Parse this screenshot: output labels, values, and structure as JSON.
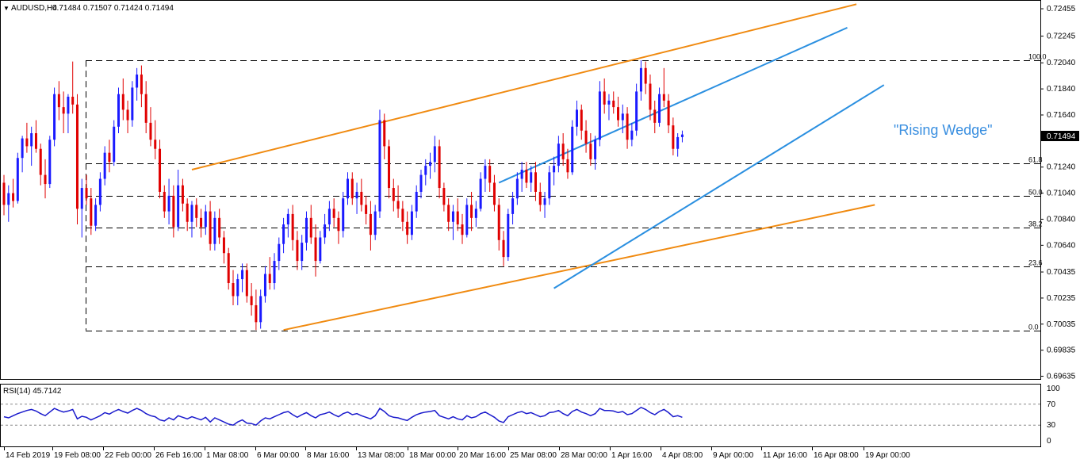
{
  "header": {
    "arrow": "▼",
    "symbol": "AUDUSD,H4",
    "ohlc": "0.71484 0.71507 0.71424 0.71494"
  },
  "annotation": "\"Rising Wedge\"",
  "price_badge": "0.71494",
  "rsi_header": "RSI(14) 45.7142",
  "colors": {
    "bull": "#1a1aff",
    "bear": "#e00000",
    "wedge": "#2a8fe0",
    "channel": "#f08a10",
    "rsi": "#1a1acc",
    "annotation": "#3a8fe0",
    "grid": "#000000"
  },
  "chart_data": {
    "type": "candlestick",
    "price_axis": {
      "min": 0.6962,
      "max": 0.7251,
      "ticks": [
        "0.72455",
        "0.72245",
        "0.72040",
        "0.71840",
        "0.71640",
        "0.71494",
        "0.71240",
        "0.71040",
        "0.70840",
        "0.70640",
        "0.70435",
        "0.70235",
        "0.70035",
        "0.69835",
        "0.69635"
      ],
      "tick_values": [
        0.72455,
        0.72245,
        0.7204,
        0.7184,
        0.7164,
        0.7124,
        0.7104,
        0.7084,
        0.7064,
        0.70435,
        0.70235,
        0.70035,
        0.69835,
        0.69635
      ]
    },
    "time_labels": [
      "14 Feb 2019",
      "19 Feb 08:00",
      "22 Feb 00:00",
      "26 Feb 16:00",
      "1 Mar 08:00",
      "6 Mar 00:00",
      "8 Mar 16:00",
      "13 Mar 08:00",
      "18 Mar 00:00",
      "20 Mar 16:00",
      "25 Mar 08:00",
      "28 Mar 00:00",
      "1 Apr 16:00",
      "4 Apr 08:00",
      "9 Apr 00:00",
      "11 Apr 16:00",
      "16 Apr 08:00",
      "19 Apr 00:00"
    ],
    "fibonacci": [
      {
        "label": "100.0",
        "value": 0.72059
      },
      {
        "label": "61.8",
        "value": 0.71266
      },
      {
        "label": "50.0",
        "value": 0.71021
      },
      {
        "label": "38.2",
        "value": 0.70777
      },
      {
        "label": "23.6",
        "value": 0.70475
      },
      {
        "label": "0.0",
        "value": 0.69987
      }
    ],
    "candles": [
      [
        0.7112,
        0.7118,
        0.7087,
        0.7095
      ],
      [
        0.7095,
        0.711,
        0.7082,
        0.7104
      ],
      [
        0.7104,
        0.7115,
        0.7093,
        0.7098
      ],
      [
        0.7098,
        0.7135,
        0.7096,
        0.7131
      ],
      [
        0.7131,
        0.7148,
        0.712,
        0.7146
      ],
      [
        0.7146,
        0.7158,
        0.7135,
        0.714
      ],
      [
        0.714,
        0.7155,
        0.7125,
        0.715
      ],
      [
        0.715,
        0.716,
        0.7135,
        0.7138
      ],
      [
        0.7138,
        0.7142,
        0.711,
        0.7118
      ],
      [
        0.7118,
        0.713,
        0.71,
        0.7111
      ],
      [
        0.7111,
        0.7148,
        0.7108,
        0.7145
      ],
      [
        0.7145,
        0.7185,
        0.714,
        0.718
      ],
      [
        0.718,
        0.719,
        0.716,
        0.717
      ],
      [
        0.717,
        0.7182,
        0.715,
        0.7165
      ],
      [
        0.7165,
        0.718,
        0.715,
        0.7178
      ],
      [
        0.7178,
        0.7205,
        0.7165,
        0.7172
      ],
      [
        0.7172,
        0.718,
        0.708,
        0.7092
      ],
      [
        0.7092,
        0.7115,
        0.707,
        0.7108
      ],
      [
        0.7108,
        0.7118,
        0.7095,
        0.71
      ],
      [
        0.71,
        0.7108,
        0.7072,
        0.7079
      ],
      [
        0.7079,
        0.71,
        0.7075,
        0.7095
      ],
      [
        0.7095,
        0.712,
        0.709,
        0.7115
      ],
      [
        0.7115,
        0.714,
        0.711,
        0.7135
      ],
      [
        0.7135,
        0.7145,
        0.712,
        0.7128
      ],
      [
        0.7128,
        0.716,
        0.7125,
        0.7155
      ],
      [
        0.7155,
        0.7185,
        0.715,
        0.718
      ],
      [
        0.718,
        0.7192,
        0.716,
        0.7168
      ],
      [
        0.7168,
        0.7175,
        0.715,
        0.716
      ],
      [
        0.716,
        0.719,
        0.7155,
        0.7185
      ],
      [
        0.7185,
        0.72,
        0.7175,
        0.7195
      ],
      [
        0.7195,
        0.7202,
        0.717,
        0.718
      ],
      [
        0.718,
        0.719,
        0.715,
        0.7158
      ],
      [
        0.7158,
        0.717,
        0.714,
        0.7145
      ],
      [
        0.7145,
        0.716,
        0.713,
        0.7138
      ],
      [
        0.7138,
        0.7145,
        0.71,
        0.7105
      ],
      [
        0.7105,
        0.711,
        0.7085,
        0.709
      ],
      [
        0.709,
        0.7115,
        0.708,
        0.7102
      ],
      [
        0.7102,
        0.711,
        0.707,
        0.7078
      ],
      [
        0.7078,
        0.7122,
        0.7075,
        0.711
      ],
      [
        0.711,
        0.7115,
        0.709,
        0.7096
      ],
      [
        0.7096,
        0.71,
        0.7075,
        0.7082
      ],
      [
        0.7082,
        0.7098,
        0.707,
        0.7095
      ],
      [
        0.7095,
        0.71,
        0.7078,
        0.7085
      ],
      [
        0.7085,
        0.7092,
        0.707,
        0.7078
      ],
      [
        0.7078,
        0.7095,
        0.7072,
        0.709
      ],
      [
        0.709,
        0.7098,
        0.706,
        0.7065
      ],
      [
        0.7065,
        0.709,
        0.706,
        0.7085
      ],
      [
        0.7085,
        0.7092,
        0.7065,
        0.707
      ],
      [
        0.707,
        0.7075,
        0.705,
        0.7058
      ],
      [
        0.7058,
        0.7062,
        0.703,
        0.7035
      ],
      [
        0.7035,
        0.7045,
        0.7018,
        0.7025
      ],
      [
        0.7025,
        0.7042,
        0.7018,
        0.7038
      ],
      [
        0.7038,
        0.705,
        0.7028,
        0.7045
      ],
      [
        0.7045,
        0.705,
        0.702,
        0.7025
      ],
      [
        0.7025,
        0.7035,
        0.701,
        0.7018
      ],
      [
        0.7018,
        0.703,
        0.6999,
        0.7005
      ],
      [
        0.7005,
        0.703,
        0.7,
        0.7025
      ],
      [
        0.7025,
        0.7048,
        0.702,
        0.7042
      ],
      [
        0.7042,
        0.7055,
        0.703,
        0.7035
      ],
      [
        0.7035,
        0.7058,
        0.703,
        0.7052
      ],
      [
        0.7052,
        0.707,
        0.7045,
        0.7065
      ],
      [
        0.7065,
        0.7085,
        0.7058,
        0.708
      ],
      [
        0.708,
        0.7092,
        0.707,
        0.7088
      ],
      [
        0.7088,
        0.7095,
        0.706,
        0.7068
      ],
      [
        0.7068,
        0.7075,
        0.7045,
        0.7052
      ],
      [
        0.7052,
        0.7072,
        0.7045,
        0.7066
      ],
      [
        0.7066,
        0.709,
        0.706,
        0.7085
      ],
      [
        0.7085,
        0.7095,
        0.7065,
        0.707
      ],
      [
        0.707,
        0.708,
        0.704,
        0.7052
      ],
      [
        0.7052,
        0.7075,
        0.705,
        0.707
      ],
      [
        0.707,
        0.7088,
        0.7065,
        0.708
      ],
      [
        0.708,
        0.7098,
        0.7075,
        0.7092
      ],
      [
        0.7092,
        0.71,
        0.7078,
        0.7085
      ],
      [
        0.7085,
        0.709,
        0.7065,
        0.7075
      ],
      [
        0.7075,
        0.7105,
        0.707,
        0.71
      ],
      [
        0.71,
        0.712,
        0.7095,
        0.7115
      ],
      [
        0.7115,
        0.712,
        0.7095,
        0.71
      ],
      [
        0.71,
        0.7112,
        0.7088,
        0.7105
      ],
      [
        0.7105,
        0.7115,
        0.709,
        0.7095
      ],
      [
        0.7095,
        0.7102,
        0.708,
        0.7088
      ],
      [
        0.7088,
        0.7098,
        0.706,
        0.7072
      ],
      [
        0.7072,
        0.7095,
        0.7068,
        0.709
      ],
      [
        0.709,
        0.7168,
        0.7085,
        0.716
      ],
      [
        0.716,
        0.7165,
        0.713,
        0.714
      ],
      [
        0.714,
        0.7145,
        0.71,
        0.7108
      ],
      [
        0.7108,
        0.7115,
        0.709,
        0.7098
      ],
      [
        0.7098,
        0.711,
        0.7085,
        0.7092
      ],
      [
        0.7092,
        0.7098,
        0.7075,
        0.7082
      ],
      [
        0.7082,
        0.709,
        0.7065,
        0.7072
      ],
      [
        0.7072,
        0.7095,
        0.7068,
        0.709
      ],
      [
        0.709,
        0.711,
        0.7085,
        0.7105
      ],
      [
        0.7105,
        0.7122,
        0.71,
        0.7118
      ],
      [
        0.7118,
        0.713,
        0.711,
        0.7125
      ],
      [
        0.7125,
        0.7135,
        0.7115,
        0.7128
      ],
      [
        0.7128,
        0.7148,
        0.712,
        0.714
      ],
      [
        0.714,
        0.7145,
        0.71,
        0.7108
      ],
      [
        0.7108,
        0.7112,
        0.709,
        0.7095
      ],
      [
        0.7095,
        0.71,
        0.7075,
        0.7082
      ],
      [
        0.7082,
        0.7095,
        0.7068,
        0.709
      ],
      [
        0.709,
        0.71,
        0.7075,
        0.708
      ],
      [
        0.708,
        0.7088,
        0.7065,
        0.7072
      ],
      [
        0.7072,
        0.71,
        0.707,
        0.7095
      ],
      [
        0.7095,
        0.7105,
        0.7075,
        0.7085
      ],
      [
        0.7085,
        0.7098,
        0.7078,
        0.7092
      ],
      [
        0.7092,
        0.712,
        0.709,
        0.7115
      ],
      [
        0.7115,
        0.713,
        0.7105,
        0.7125
      ],
      [
        0.7125,
        0.713,
        0.7105,
        0.7112
      ],
      [
        0.7112,
        0.7118,
        0.709,
        0.7095
      ],
      [
        0.7095,
        0.71,
        0.706,
        0.7068
      ],
      [
        0.7068,
        0.7075,
        0.7048,
        0.7055
      ],
      [
        0.7055,
        0.7092,
        0.7052,
        0.7088
      ],
      [
        0.7088,
        0.7105,
        0.708,
        0.71
      ],
      [
        0.71,
        0.712,
        0.7095,
        0.7115
      ],
      [
        0.7115,
        0.7128,
        0.7105,
        0.7122
      ],
      [
        0.7122,
        0.7128,
        0.7108,
        0.7112
      ],
      [
        0.7112,
        0.7125,
        0.7105,
        0.712
      ],
      [
        0.712,
        0.7128,
        0.7098,
        0.7105
      ],
      [
        0.7105,
        0.7112,
        0.709,
        0.7095
      ],
      [
        0.7095,
        0.7105,
        0.7085,
        0.71
      ],
      [
        0.71,
        0.7125,
        0.7095,
        0.712
      ],
      [
        0.712,
        0.7132,
        0.711,
        0.7125
      ],
      [
        0.7125,
        0.7148,
        0.712,
        0.7142
      ],
      [
        0.7142,
        0.715,
        0.7125,
        0.713
      ],
      [
        0.713,
        0.7138,
        0.7115,
        0.712
      ],
      [
        0.712,
        0.716,
        0.7118,
        0.7155
      ],
      [
        0.7155,
        0.7175,
        0.7148,
        0.7168
      ],
      [
        0.7168,
        0.7172,
        0.7145,
        0.7152
      ],
      [
        0.7152,
        0.716,
        0.7135,
        0.7142
      ],
      [
        0.7142,
        0.715,
        0.7125,
        0.713
      ],
      [
        0.713,
        0.7148,
        0.7122,
        0.7145
      ],
      [
        0.7145,
        0.719,
        0.714,
        0.7182
      ],
      [
        0.7182,
        0.7192,
        0.7165,
        0.7172
      ],
      [
        0.7172,
        0.718,
        0.716,
        0.7175
      ],
      [
        0.7175,
        0.7182,
        0.7165,
        0.717
      ],
      [
        0.717,
        0.7178,
        0.7155,
        0.716
      ],
      [
        0.716,
        0.7172,
        0.715,
        0.7165
      ],
      [
        0.7165,
        0.717,
        0.7138,
        0.7145
      ],
      [
        0.7145,
        0.7158,
        0.714,
        0.7152
      ],
      [
        0.7152,
        0.7188,
        0.7148,
        0.7182
      ],
      [
        0.7182,
        0.7206,
        0.7175,
        0.72
      ],
      [
        0.72,
        0.7205,
        0.718,
        0.7188
      ],
      [
        0.7188,
        0.7195,
        0.716,
        0.7168
      ],
      [
        0.7168,
        0.7175,
        0.715,
        0.7158
      ],
      [
        0.7158,
        0.7185,
        0.7155,
        0.718
      ],
      [
        0.718,
        0.72,
        0.717,
        0.7175
      ],
      [
        0.7175,
        0.718,
        0.715,
        0.7156
      ],
      [
        0.7156,
        0.7162,
        0.7133,
        0.7138
      ],
      [
        0.7138,
        0.715,
        0.7132,
        0.7147
      ],
      [
        0.7147,
        0.7152,
        0.7143,
        0.7149
      ]
    ],
    "trendlines": [
      {
        "name": "channel-upper",
        "from": {
          "bar": 41,
          "price": 0.7122
        },
        "to": {
          "bar": 186,
          "price": 0.7249
        }
      },
      {
        "name": "channel-lower",
        "from": {
          "bar": 61,
          "price": 0.6999
        },
        "to": {
          "bar": 190,
          "price": 0.7095
        }
      },
      {
        "name": "wedge-upper",
        "from": {
          "bar": 108,
          "price": 0.7112
        },
        "to": {
          "bar": 184,
          "price": 0.7231
        }
      },
      {
        "name": "wedge-lower",
        "from": {
          "bar": 120,
          "price": 0.7031
        },
        "to": {
          "bar": 192,
          "price": 0.7187
        }
      }
    ],
    "rsi": {
      "label": "RSI(14)",
      "value": 45.7142,
      "levels": [
        70,
        30
      ],
      "axis_ticks": [
        "100",
        "70",
        "30",
        "0"
      ],
      "values": [
        46,
        44,
        48,
        52,
        55,
        58,
        60,
        57,
        52,
        48,
        55,
        62,
        58,
        55,
        57,
        60,
        42,
        47,
        45,
        40,
        44,
        48,
        54,
        51,
        56,
        60,
        56,
        53,
        58,
        62,
        58,
        52,
        48,
        46,
        40,
        38,
        44,
        40,
        48,
        45,
        42,
        46,
        43,
        40,
        45,
        36,
        44,
        40,
        36,
        32,
        30,
        36,
        40,
        34,
        33,
        30,
        38,
        44,
        42,
        46,
        50,
        54,
        56,
        50,
        45,
        50,
        54,
        48,
        44,
        50,
        52,
        55,
        50,
        46,
        52,
        55,
        50,
        52,
        48,
        45,
        42,
        48,
        62,
        56,
        48,
        45,
        44,
        41,
        39,
        45,
        50,
        53,
        55,
        56,
        58,
        48,
        45,
        42,
        46,
        42,
        40,
        48,
        44,
        46,
        52,
        55,
        50,
        45,
        38,
        35,
        46,
        50,
        54,
        56,
        52,
        54,
        50,
        46,
        48,
        54,
        55,
        58,
        52,
        48,
        56,
        60,
        55,
        52,
        48,
        52,
        62,
        58,
        58,
        57,
        54,
        56,
        50,
        52,
        58,
        64,
        60,
        54,
        50,
        56,
        60,
        54,
        46,
        48,
        45
      ]
    }
  }
}
